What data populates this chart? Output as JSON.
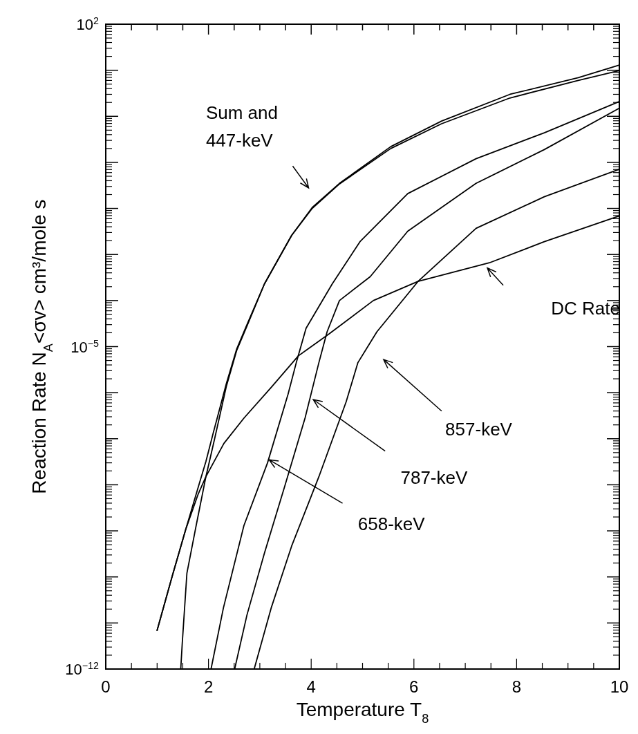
{
  "chart_data": {
    "type": "line",
    "xlabel": "Temperature T$_{8}$",
    "ylabel": "Reaction Rate N$_{A}$<σv> cm³/mole s",
    "log": "y",
    "xlim": [
      0,
      10
    ],
    "ylim": [
      1e-12,
      100
    ],
    "xticks": [
      0,
      {
        "value": 0.5,
        "label": null
      },
      {
        "value": 1,
        "label": null
      },
      {
        "value": 1.5,
        "label": null
      },
      2,
      {
        "value": 2.5,
        "label": null
      },
      {
        "value": 3,
        "label": null
      },
      {
        "value": 3.5,
        "label": null
      },
      4,
      {
        "value": 4.5,
        "label": null
      },
      {
        "value": 5,
        "label": null
      },
      {
        "value": 5.5,
        "label": null
      },
      6,
      {
        "value": 6.5,
        "label": null
      },
      {
        "value": 7,
        "label": null
      },
      {
        "value": 7.5,
        "label": null
      },
      8,
      {
        "value": 8.5,
        "label": null
      },
      {
        "value": 9,
        "label": null
      },
      {
        "value": 9.5,
        "label": null
      },
      10
    ],
    "yticks": [
      {
        "value": 1e-12,
        "label": "10$^{−12}$"
      },
      {
        "value": 1e-11,
        "label": null
      },
      {
        "value": 1e-10,
        "label": null
      },
      {
        "value": 1e-09,
        "label": null
      },
      {
        "value": 1e-08,
        "label": null
      },
      {
        "value": 1e-07,
        "label": null
      },
      {
        "value": 1e-06,
        "label": null
      },
      {
        "value": 1e-05,
        "label": "10$^{−5}$"
      },
      {
        "value": 0.0001,
        "label": null
      },
      {
        "value": 0.001,
        "label": null
      },
      {
        "value": 0.01,
        "label": null
      },
      {
        "value": 0.1,
        "label": null
      },
      {
        "value": 1,
        "label": null
      },
      {
        "value": 10,
        "label": null
      },
      {
        "value": 100,
        "label": "10$^{2}$"
      }
    ],
    "series": [
      {
        "color": "#000000",
        "x": [
          1.0,
          1.29,
          1.56,
          1.82,
          1.95,
          2.09,
          2.35,
          2.55,
          2.75,
          3.09,
          3.62,
          4.02,
          4.55,
          5.55,
          6.54,
          7.87,
          9.2,
          10
        ],
        "values": [
          6.9e-12,
          1e-10,
          1.1e-09,
          1.05e-08,
          3.2e-08,
          1.3e-07,
          1.6e-06,
          8.9e-06,
          3e-05,
          0.00023,
          0.0026,
          0.0105,
          0.035,
          0.22,
          0.79,
          3.0,
          6.9,
          13
        ]
      },
      {
        "color": "#000000",
        "x": [
          1.46,
          1.49,
          1.58,
          1.76,
          1.95,
          2.12,
          2.35,
          2.55,
          2.75,
          3.09,
          3.62,
          4.02,
          4.55,
          5.55,
          6.54,
          7.87,
          9.2,
          10
        ],
        "values": [
          1e-12,
          3.7e-12,
          1.2e-10,
          1.3e-09,
          1.5e-08,
          1e-07,
          1.4e-06,
          8.3e-06,
          2.8e-05,
          0.00023,
          0.0026,
          0.01,
          0.034,
          0.2,
          0.69,
          2.5,
          6.0,
          9.8
        ]
      },
      {
        "color": "#000000",
        "x": [
          1.0,
          1.3,
          1.56,
          1.8,
          1.95,
          2.3,
          2.69,
          3.22,
          3.75,
          4.35,
          5.21,
          6.08,
          7.47,
          8.54,
          10
        ],
        "values": [
          6.9e-12,
          1.1e-10,
          1.1e-09,
          6.3e-09,
          1.5e-08,
          7.9e-08,
          2.8e-07,
          1.3e-06,
          6.3e-06,
          1.9e-05,
          0.0001,
          0.00026,
          0.00066,
          0.0019,
          0.0069
        ]
      },
      {
        "color": "#000000",
        "x": [
          2.05,
          2.29,
          2.69,
          3.15,
          3.55,
          3.71,
          3.9,
          4.41,
          4.95,
          5.88,
          7.21,
          8.54,
          10
        ],
        "values": [
          1e-12,
          2.1e-11,
          1.3e-09,
          3e-08,
          9.3e-07,
          4.5e-06,
          2.5e-05,
          0.00023,
          0.0019,
          0.021,
          0.12,
          0.44,
          2.1
        ]
      },
      {
        "color": "#000000",
        "x": [
          2.51,
          2.75,
          3.09,
          3.48,
          3.88,
          4.15,
          4.31,
          4.55,
          5.15,
          5.88,
          7.21,
          8.54,
          10
        ],
        "values": [
          1e-12,
          1.5e-11,
          3.3e-10,
          8.9e-09,
          2.8e-07,
          4.5e-06,
          2.1e-05,
          0.0001,
          0.00033,
          0.0032,
          0.035,
          0.19,
          1.5
        ]
      },
      {
        "color": "#000000",
        "x": [
          2.89,
          3.22,
          3.62,
          4.15,
          4.68,
          4.91,
          5.28,
          6.08,
          7.21,
          8.54,
          10
        ],
        "values": [
          1e-12,
          2.1e-11,
          4.7e-10,
          1.5e-08,
          6.3e-07,
          4.5e-06,
          2.1e-05,
          0.00026,
          0.0037,
          0.018,
          0.071
        ]
      }
    ],
    "annotations": [
      "Sum and\n447-keV",
      "DC Rate",
      "857-keV",
      "787-keV",
      {
        "text": "658-keV",
        "x": 3.18,
        "y": 3.5e-08
      }
    ]
  }
}
